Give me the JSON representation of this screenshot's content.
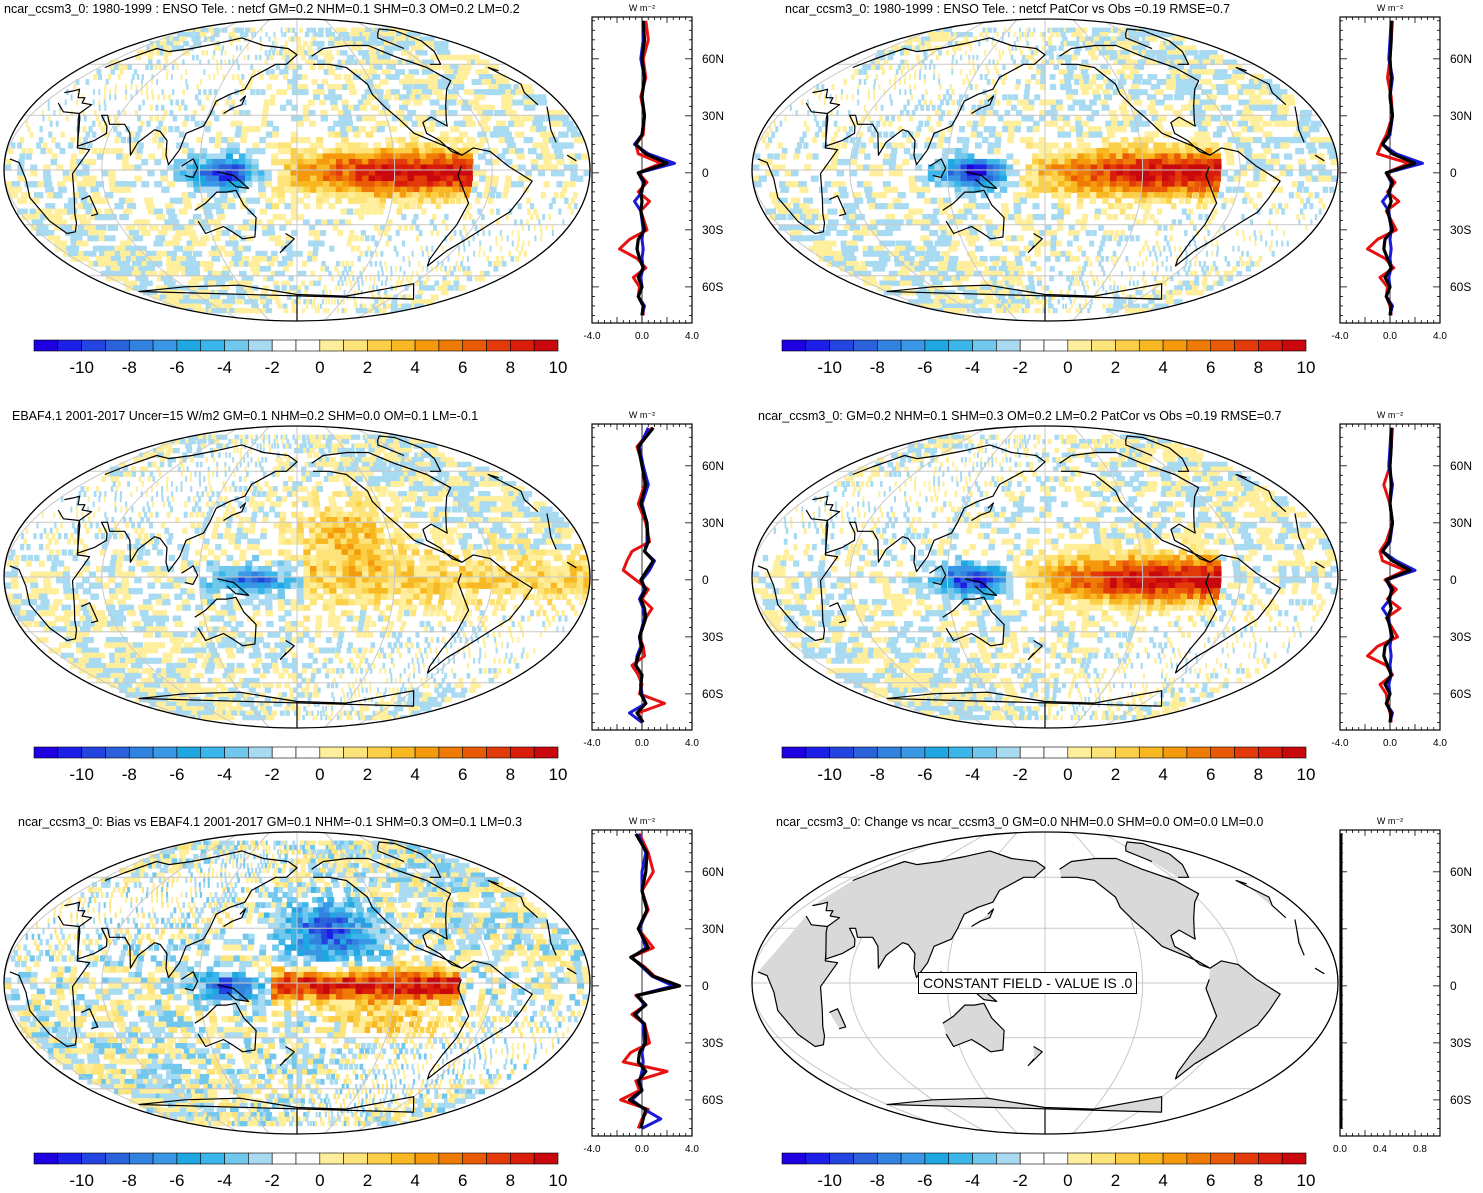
{
  "palette": {
    "colors": [
      "#1f00e0",
      "#1c1fe8",
      "#2444df",
      "#2b62dc",
      "#3283e0",
      "#3a97e6",
      "#1ea7e0",
      "#3ab6ea",
      "#72c7ec",
      "#a8daf2",
      "#ffffff",
      "#ffffff",
      "#ffef9c",
      "#fde47a",
      "#fbd048",
      "#f7b821",
      "#f59a0d",
      "#ef7a06",
      "#e95a06",
      "#e23a08",
      "#d81d0b",
      "#c8080d"
    ],
    "labels": [
      "-10",
      "-8",
      "-6",
      "-4",
      "-2",
      "0",
      "2",
      "4",
      "6",
      "8",
      "10"
    ],
    "model_color": "#e81010",
    "obs_color": "#1a1ad8",
    "third_color": "#000000",
    "land_gray": "#d9d9d9"
  },
  "zonal_units": "W m⁻²",
  "panels": [
    {
      "id": "p1",
      "title": "ncar_ccsm3_0: 1980-1999 : ENSO Tele. : netcf GM=0.2 NHM=0.1 SHM=0.3 OM=0.2 LM=0.2"
    },
    {
      "id": "p2",
      "title": "ncar_ccsm3_0: 1980-1999 : ENSO Tele. : netcf PatCor vs Obs =0.19 RMSE=0.7"
    },
    {
      "id": "p3",
      "title": "EBAF4.1 2001-2017 Uncer=15 W/m2 GM=0.1 NHM=0.2 SHM=0.0 OM=0.1 LM=-0.1"
    },
    {
      "id": "p4",
      "title": "ncar_ccsm3_0: GM=0.2 NHM=0.1 SHM=0.3 OM=0.2 LM=0.2 PatCor vs Obs =0.19 RMSE=0.7"
    },
    {
      "id": "p5",
      "title": "ncar_ccsm3_0: Bias vs EBAF4.1 2001-2017 GM=0.1 NHM=-0.1 SHM=0.3 OM=0.1 LM=0.3"
    },
    {
      "id": "p6",
      "title": "ncar_ccsm3_0: Change vs ncar_ccsm3_0 GM=0.0 NHM=0.0 SHM=0.0 OM=0.0 LM=0.0",
      "annotation": "CONSTANT FIELD - VALUE IS .0"
    }
  ],
  "chart_data": [
    {
      "panel": "p1",
      "type": "heatmap",
      "title": "ncar_ccsm3_0: 1980-1999 : ENSO Tele. : netcf GM=0.2 NHM=0.1 SHM=0.3 OM=0.2 LM=0.2",
      "colorbar": {
        "min": -11,
        "max": 11,
        "labels": [
          "-10",
          "-8",
          "-6",
          "-4",
          "-2",
          "0",
          "2",
          "4",
          "6",
          "8",
          "10"
        ]
      },
      "zonal": {
        "xlim": [
          -4,
          4
        ],
        "xticks": [
          "-4.0",
          "0.0",
          "4.0"
        ],
        "yticks": [
          "60N",
          "30N",
          "0",
          "30S",
          "60S"
        ],
        "units": "W m⁻²",
        "lat": [
          80,
          70,
          60,
          50,
          40,
          30,
          20,
          15,
          10,
          5,
          0,
          -5,
          -10,
          -15,
          -20,
          -30,
          -35,
          -40,
          -45,
          -50,
          -55,
          -60,
          -65,
          -70,
          -75
        ],
        "series": [
          {
            "name": "model",
            "values": [
              0.3,
              0.5,
              0.1,
              0.3,
              -0.1,
              0.2,
              0.1,
              -0.5,
              -0.3,
              1.5,
              -0.3,
              0.4,
              -0.3,
              0.6,
              -0.1,
              0.4,
              -1.0,
              -1.8,
              -0.4,
              0.3,
              -0.7,
              -0.2,
              -0.3,
              0.1,
              0.1
            ]
          },
          {
            "name": "obs",
            "values": [
              0.1,
              0.1,
              -0.1,
              0.2,
              0.0,
              0.2,
              0.0,
              -0.6,
              0.5,
              2.6,
              -0.3,
              0.1,
              0.0,
              -0.6,
              -0.1,
              0.1,
              0.0,
              0.1,
              0.0,
              0.1,
              -0.1,
              0.0,
              -0.3,
              0.2,
              0.0
            ]
          },
          {
            "name": "black",
            "values": [
              0.1,
              0.2,
              0.0,
              0.2,
              0.0,
              0.2,
              0.0,
              -0.5,
              0.3,
              2.0,
              -0.3,
              0.2,
              -0.1,
              0.0,
              -0.1,
              0.2,
              -0.3,
              -0.4,
              -0.2,
              0.1,
              -0.3,
              0.0,
              -0.3,
              0.1,
              0.0
            ]
          }
        ]
      }
    },
    {
      "panel": "p2",
      "type": "heatmap",
      "title": "ncar_ccsm3_0: 1980-1999 : ENSO Tele. : netcf PatCor vs Obs =0.19 RMSE=0.7",
      "colorbar": {
        "min": -11,
        "max": 11,
        "labels": [
          "-10",
          "-8",
          "-6",
          "-4",
          "-2",
          "0",
          "2",
          "4",
          "6",
          "8",
          "10"
        ]
      },
      "zonal": {
        "xlim": [
          -4,
          4
        ],
        "xticks": [
          "-4.0",
          "0.0",
          "4.0"
        ],
        "yticks": [
          "60N",
          "30N",
          "0",
          "30S",
          "60S"
        ],
        "units": "W m⁻²",
        "lat": [
          80,
          70,
          60,
          50,
          40,
          30,
          20,
          15,
          10,
          5,
          0,
          -5,
          -10,
          -15,
          -20,
          -30,
          -35,
          -40,
          -45,
          -50,
          -55,
          -60,
          -65,
          -70,
          -75
        ],
        "series": [
          {
            "name": "model",
            "values": [
              0.2,
              0.1,
              0.0,
              -0.2,
              0.1,
              0.2,
              -0.3,
              -0.7,
              -1.0,
              1.5,
              -0.3,
              0.4,
              -0.2,
              0.7,
              -0.3,
              0.5,
              -1.0,
              -1.8,
              -0.4,
              0.3,
              -0.8,
              -0.2,
              -0.3,
              0.0,
              0.1
            ]
          },
          {
            "name": "obs",
            "values": [
              0.1,
              0.0,
              -0.1,
              0.2,
              0.0,
              0.2,
              0.0,
              -0.6,
              0.5,
              2.6,
              -0.3,
              0.1,
              0.0,
              -0.6,
              -0.1,
              0.1,
              0.0,
              0.1,
              0.0,
              0.1,
              -0.1,
              0.0,
              -0.3,
              0.2,
              0.0
            ]
          },
          {
            "name": "black",
            "values": [
              0.1,
              0.1,
              0.0,
              0.1,
              0.0,
              0.2,
              -0.1,
              -0.6,
              0.2,
              2.0,
              -0.3,
              0.2,
              -0.1,
              0.1,
              -0.2,
              0.2,
              -0.4,
              -0.5,
              -0.2,
              0.1,
              -0.4,
              0.0,
              -0.3,
              0.1,
              0.0
            ]
          }
        ]
      }
    },
    {
      "panel": "p3",
      "type": "heatmap",
      "title": "EBAF4.1 2001-2017 Uncer=15 W/m2 GM=0.1 NHM=0.2 SHM=0.0 OM=0.1 LM=-0.1",
      "colorbar": {
        "min": -11,
        "max": 11,
        "labels": [
          "-10",
          "-8",
          "-6",
          "-4",
          "-2",
          "0",
          "2",
          "4",
          "6",
          "8",
          "10"
        ]
      },
      "zonal": {
        "xlim": [
          -4,
          4
        ],
        "xticks": [
          "-4.0",
          "0.0",
          "4.0"
        ],
        "yticks": [
          "60N",
          "30N",
          "0",
          "30S",
          "60S"
        ],
        "units": "W m⁻²",
        "lat": [
          80,
          70,
          60,
          50,
          40,
          30,
          20,
          15,
          10,
          5,
          0,
          -5,
          -10,
          -15,
          -20,
          -30,
          -35,
          -40,
          -45,
          -50,
          -55,
          -60,
          -65,
          -70,
          -75
        ],
        "series": [
          {
            "name": "model",
            "values": [
              0.8,
              -0.4,
              0.1,
              0.2,
              -0.3,
              0.3,
              0.6,
              -0.8,
              -1.2,
              -1.5,
              -0.5,
              0.5,
              0.0,
              0.8,
              0.3,
              -0.2,
              0.1,
              0.2,
              -0.8,
              -0.3,
              0.0,
              -0.2,
              1.8,
              -0.3,
              0.0
            ]
          },
          {
            "name": "obs",
            "values": [
              0.5,
              -0.2,
              0.1,
              0.5,
              0.0,
              0.4,
              0.4,
              0.2,
              1.0,
              0.6,
              0.0,
              0.2,
              -0.2,
              0.1,
              0.2,
              -0.2,
              -0.1,
              -0.4,
              -0.5,
              0.0,
              -0.1,
              0.0,
              0.3,
              -1.0,
              0.0
            ]
          },
          {
            "name": "black",
            "values": [
              0.9,
              -0.3,
              0.0,
              0.3,
              -0.1,
              0.4,
              0.5,
              0.2,
              0.9,
              0.4,
              -0.1,
              0.3,
              -0.1,
              0.2,
              0.3,
              -0.2,
              0.0,
              -0.3,
              -0.5,
              0.0,
              -0.1,
              -0.1,
              0.3,
              -0.4,
              0.1
            ]
          }
        ]
      }
    },
    {
      "panel": "p4",
      "type": "heatmap",
      "title": "ncar_ccsm3_0: GM=0.2 NHM=0.1 SHM=0.3 OM=0.2 LM=0.2 PatCor vs Obs =0.19 RMSE=0.7",
      "colorbar": {
        "min": -11,
        "max": 11,
        "labels": [
          "-10",
          "-8",
          "-6",
          "-4",
          "-2",
          "0",
          "2",
          "4",
          "6",
          "8",
          "10"
        ]
      },
      "zonal": {
        "xlim": [
          -4,
          4
        ],
        "xticks": [
          "-4.0",
          "0.0",
          "4.0"
        ],
        "yticks": [
          "60N",
          "30N",
          "0",
          "30S",
          "60S"
        ],
        "units": "W m⁻²",
        "lat": [
          80,
          70,
          60,
          50,
          40,
          30,
          20,
          15,
          10,
          5,
          0,
          -5,
          -10,
          -15,
          -20,
          -30,
          -35,
          -40,
          -45,
          -50,
          -55,
          -60,
          -65,
          -70,
          -75
        ],
        "series": [
          {
            "name": "model",
            "values": [
              0.2,
              0.1,
              0.0,
              -0.5,
              0.0,
              0.2,
              -0.3,
              -0.8,
              -0.6,
              1.2,
              -0.4,
              0.5,
              -0.2,
              0.8,
              -0.3,
              0.6,
              -1.0,
              -1.8,
              -0.3,
              0.2,
              -0.8,
              -0.3,
              -0.2,
              0.0,
              0.1
            ]
          },
          {
            "name": "obs",
            "values": [
              0.1,
              0.0,
              -0.1,
              0.2,
              0.0,
              0.2,
              0.0,
              -0.6,
              0.5,
              2.0,
              -0.3,
              0.1,
              0.0,
              -0.6,
              -0.1,
              0.1,
              0.0,
              0.1,
              0.0,
              0.1,
              -0.1,
              0.0,
              -0.3,
              0.2,
              0.0
            ]
          },
          {
            "name": "black",
            "values": [
              0.1,
              0.1,
              0.0,
              0.1,
              0.0,
              0.2,
              -0.1,
              -0.6,
              0.2,
              1.6,
              -0.3,
              0.2,
              -0.1,
              0.1,
              -0.2,
              0.2,
              -0.4,
              -0.5,
              -0.2,
              0.1,
              -0.4,
              0.0,
              -0.3,
              0.1,
              0.0
            ]
          }
        ]
      }
    },
    {
      "panel": "p5",
      "type": "heatmap",
      "title": "ncar_ccsm3_0: Bias vs EBAF4.1 2001-2017 GM=0.1 NHM=-0.1 SHM=0.3 OM=0.1 LM=0.3",
      "colorbar": {
        "min": -11,
        "max": 11,
        "labels": [
          "-10",
          "-8",
          "-6",
          "-4",
          "-2",
          "0",
          "2",
          "4",
          "6",
          "8",
          "10"
        ]
      },
      "zonal": {
        "xlim": [
          -4,
          4
        ],
        "xticks": [
          "-4.0",
          "0.0",
          "4.0"
        ],
        "yticks": [
          "60N",
          "30N",
          "0",
          "30S",
          "60S"
        ],
        "units": "W m⁻²",
        "lat": [
          80,
          70,
          60,
          50,
          40,
          30,
          20,
          15,
          10,
          5,
          0,
          -5,
          -10,
          -15,
          -20,
          -30,
          -35,
          -40,
          -45,
          -50,
          -55,
          -60,
          -65,
          -70,
          -75
        ],
        "series": [
          {
            "name": "model",
            "values": [
              -0.2,
              0.5,
              0.9,
              0.0,
              0.5,
              -0.3,
              0.9,
              -0.9,
              0.2,
              1.0,
              3.0,
              -0.5,
              0.3,
              -0.8,
              0.2,
              0.6,
              -0.9,
              -1.5,
              2.0,
              -0.5,
              -0.2,
              -1.7,
              0.5,
              0.0,
              -0.3
            ]
          },
          {
            "name": "obs",
            "values": [
              -0.3,
              0.3,
              0.0,
              0.0,
              0.4,
              -0.2,
              0.3,
              -0.8,
              0.0,
              0.8,
              2.5,
              -0.4,
              0.2,
              -0.5,
              0.1,
              0.2,
              0.0,
              0.1,
              0.0,
              -0.2,
              0.0,
              -0.8,
              0.2,
              1.5,
              0.0
            ]
          },
          {
            "name": "black",
            "values": [
              -0.5,
              0.4,
              0.3,
              0.0,
              0.4,
              -0.3,
              0.5,
              -0.9,
              0.1,
              0.9,
              3.0,
              -0.4,
              0.3,
              -0.6,
              0.2,
              0.3,
              -0.2,
              -0.3,
              0.3,
              -0.3,
              0.0,
              -1.0,
              0.3,
              0.1,
              -0.1
            ]
          }
        ]
      }
    },
    {
      "panel": "p6",
      "type": "heatmap",
      "title": "ncar_ccsm3_0: Change vs ncar_ccsm3_0 GM=0.0 NHM=0.0 SHM=0.0 OM=0.0 LM=0.0",
      "colorbar": {
        "min": -11,
        "max": 11,
        "labels": [
          "-10",
          "-8",
          "-6",
          "-4",
          "-2",
          "0",
          "2",
          "4",
          "6",
          "8",
          "10"
        ]
      },
      "zonal": {
        "xlim": [
          0,
          1
        ],
        "xticks": [
          "0.0",
          "0.4",
          "0.8"
        ],
        "yticks": [
          "60N",
          "30N",
          "0",
          "30S",
          "60S"
        ],
        "units": "W m⁻²",
        "lat": [
          80,
          -75
        ],
        "series": [
          {
            "name": "constant",
            "values": [
              0.0,
              0.0
            ]
          }
        ]
      }
    }
  ]
}
